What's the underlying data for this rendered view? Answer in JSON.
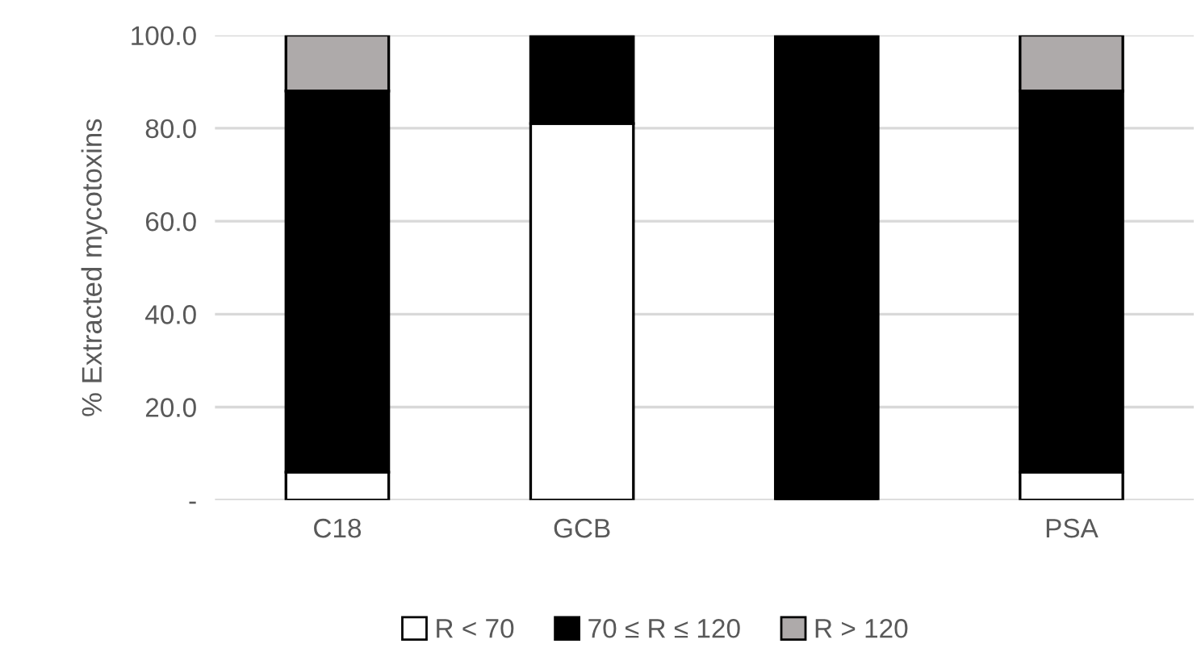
{
  "chart_data": {
    "type": "bar",
    "ylabel": "% Extracted mycotoxins",
    "categories": [
      "C18",
      "GCB",
      null,
      "PSA"
    ],
    "stacked": true,
    "series": [
      {
        "name": "R < 70",
        "color": "#ffffff",
        "values": [
          6,
          81,
          0,
          6
        ]
      },
      {
        "name": "70 ≤ R ≤ 120",
        "color": "#000000",
        "values": [
          82,
          19,
          100,
          82
        ]
      },
      {
        "name": "R > 120",
        "color": "#aeaaaa",
        "values": [
          12,
          0,
          0,
          12
        ]
      }
    ],
    "ylim": [
      0,
      100
    ],
    "yticks": [
      {
        "value": 0,
        "label": "-"
      },
      {
        "value": 20,
        "label": "20.0"
      },
      {
        "value": 40,
        "label": "40.0"
      },
      {
        "value": 60,
        "label": "60.0"
      },
      {
        "value": 80,
        "label": "80.0"
      },
      {
        "value": 100,
        "label": "100.0"
      }
    ],
    "grid": "y",
    "legend": "bottom"
  }
}
